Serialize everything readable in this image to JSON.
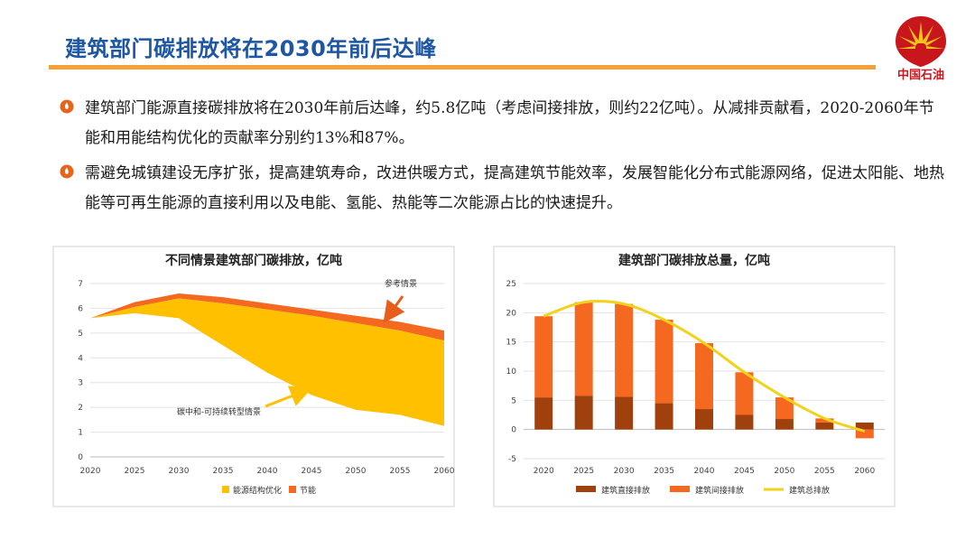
{
  "header": {
    "title": "建筑部门碳排放将在2030年前后达峰",
    "logo_text": "中国石油",
    "colors": {
      "title": "#1d56a3",
      "rule": "#f4a13a",
      "logo_red": "#c8161d",
      "logo_yellow": "#f6c21b"
    }
  },
  "bullets": [
    {
      "icon": "orange-bullet-icon",
      "text": "建筑部门能源直接碳排放将在2030年前后达峰，约5.8亿吨（考虑间接排放，则约22亿吨）。从减排贡献看，2020-2060年节能和用能结构优化的贡献率分别约13%和87%。"
    },
    {
      "icon": "orange-bullet-icon",
      "text": "需避免城镇建设无序扩张，提高建筑寿命，改进供暖方式，提高建筑节能效率，发展智能化分布式能源网络，促进太阳能、地热能等可再生能源的直接利用以及电能、氢能、热能等二次能源占比的快速提升。"
    }
  ],
  "chart_data": [
    {
      "type": "area",
      "title": "不同情景建筑部门碳排放，亿吨",
      "x": [
        2020,
        2025,
        2030,
        2035,
        2040,
        2045,
        2050,
        2055,
        2060
      ],
      "ylim": [
        0,
        7
      ],
      "yticks": [
        0,
        1,
        2,
        3,
        4,
        5,
        6,
        7
      ],
      "reference_scenario": [
        5.6,
        6.25,
        6.6,
        6.45,
        6.2,
        5.95,
        5.7,
        5.45,
        5.1
      ],
      "after_saving": [
        5.6,
        6.05,
        6.4,
        6.2,
        5.95,
        5.7,
        5.4,
        5.1,
        4.7
      ],
      "neutral_scenario": [
        5.6,
        5.8,
        5.6,
        4.5,
        3.4,
        2.5,
        1.9,
        1.7,
        1.25
      ],
      "series": [
        {
          "name": "能源结构优化",
          "color": "#ffc000"
        },
        {
          "name": "节能",
          "color": "#f4691f"
        }
      ],
      "annotations": [
        {
          "text": "参考情景"
        },
        {
          "text": "碳中和-可持续转型情景"
        }
      ],
      "grid": true,
      "legend": "bottom"
    },
    {
      "type": "bar",
      "title": "建筑部门碳排放总量，亿吨",
      "categories": [
        "2020",
        "2025",
        "2030",
        "2035",
        "2040",
        "2045",
        "2050",
        "2055",
        "2060"
      ],
      "ylim": [
        -5,
        25
      ],
      "yticks": [
        -5,
        0,
        5,
        10,
        15,
        20,
        25
      ],
      "series": [
        {
          "name": "建筑直接排放",
          "type": "bar",
          "color": "#a0410d",
          "values": [
            5.5,
            5.8,
            5.6,
            4.5,
            3.5,
            2.5,
            1.8,
            1.2,
            1.2
          ]
        },
        {
          "name": "建筑间接排放",
          "type": "bar",
          "color": "#f4691f",
          "values": [
            13.9,
            16.0,
            15.9,
            14.3,
            11.3,
            7.3,
            3.7,
            0.7,
            -1.5
          ]
        },
        {
          "name": "建筑总排放",
          "type": "line",
          "color": "#f2d21b",
          "values": [
            19.4,
            21.8,
            21.5,
            18.8,
            14.8,
            9.8,
            5.5,
            1.9,
            -0.3
          ]
        }
      ],
      "grid": true,
      "legend": "bottom"
    }
  ]
}
